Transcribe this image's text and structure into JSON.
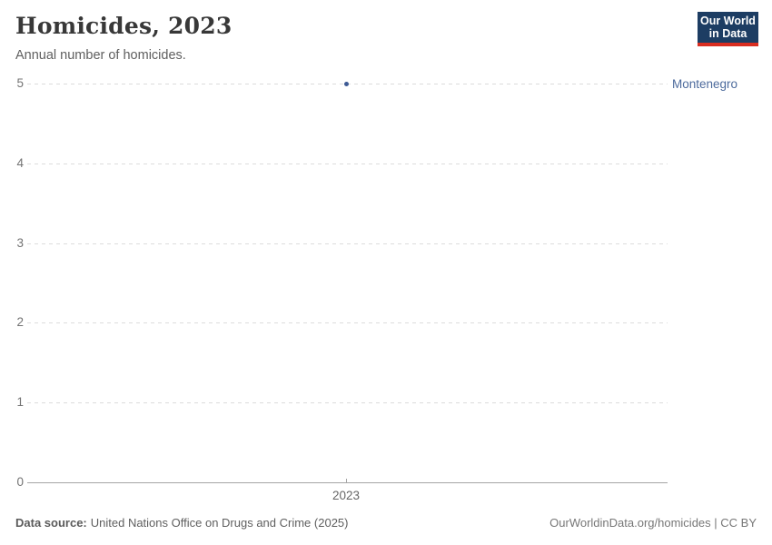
{
  "header": {
    "title": "Homicides, 2023",
    "subtitle": "Annual number of homicides."
  },
  "logo": {
    "line1": "Our World",
    "line2": "in Data",
    "bg_color": "#1d3d63",
    "bar_color": "#d92d20",
    "text_color": "#ffffff"
  },
  "chart_data": {
    "type": "scatter",
    "title": "Homicides, 2023",
    "subtitle": "Annual number of homicides.",
    "x": [
      "2023"
    ],
    "series": [
      {
        "name": "Montenegro",
        "values": [
          5
        ],
        "color": "#3d5a94"
      }
    ],
    "xlabel": "",
    "ylabel": "",
    "ylim": [
      0,
      5
    ],
    "yticks": [
      0,
      1,
      2,
      3,
      4,
      5
    ],
    "xticks": [
      "2023"
    ],
    "grid": "horizontal-dashed",
    "legend_position": "right-of-plot-entity-label",
    "entity_label": "Montenegro",
    "entity_label_color": "#4c6a9c"
  },
  "axes": {
    "y_ticks": [
      "5",
      "4",
      "3",
      "2",
      "1",
      "0"
    ],
    "x_tick": "2023"
  },
  "footer": {
    "source_label": "Data source:",
    "source_value": "United Nations Office on Drugs and Crime (2025)",
    "credit": "OurWorldinData.org/homicides | CC BY"
  },
  "colors": {
    "grid": "#dcdcdc",
    "axis": "#a5a5a5",
    "tick_text": "#737373",
    "title_text": "#383838",
    "subtitle_text": "#5f5f5f",
    "point": "#3d5a94",
    "entity_label": "#4c6a9c",
    "footer_text": "#5b5b5b",
    "credit_text": "#777777"
  }
}
